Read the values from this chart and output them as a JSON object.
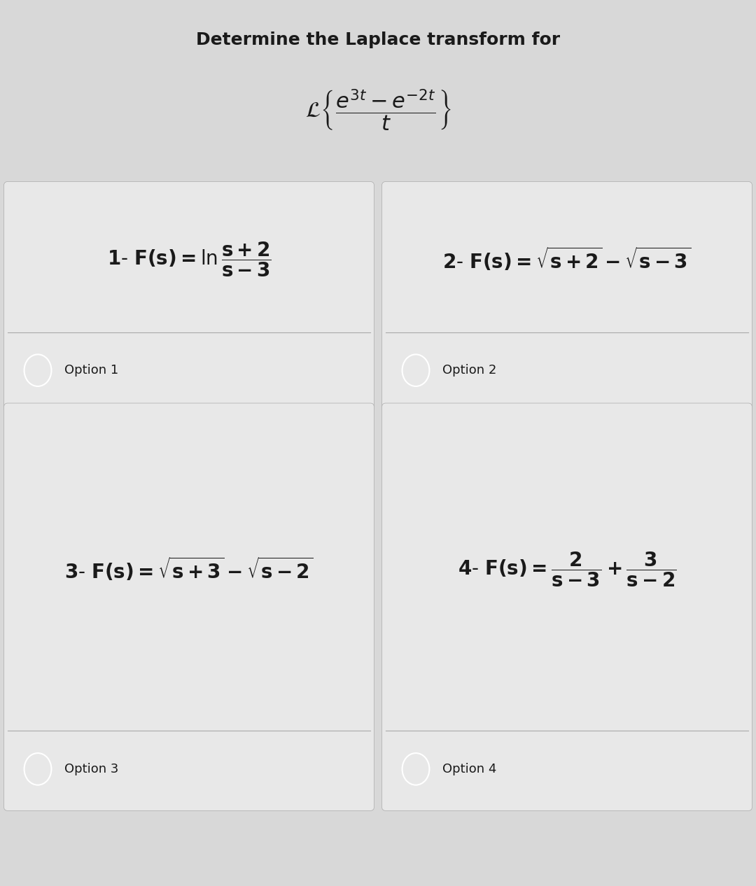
{
  "title": "Determine the Laplace transform for",
  "title_fontsize": 18,
  "question_latex": "$\\mathcal{L}\\left\\{\\dfrac{e^{3t} - e^{-2t}}{t}\\right\\}$",
  "question_fontsize": 22,
  "option1_latex": "$\\mathbf{1\\text{-}\\ F(s) = \\ln\\dfrac{s+2}{s-3}}$",
  "option2_latex": "$\\mathbf{2\\text{-}\\ F(s) = \\sqrt{s+2} - \\sqrt{s-3}}$",
  "option3_latex": "$\\mathbf{3\\text{-}\\ F(s) = \\sqrt{s+3} - \\sqrt{s-2}}$",
  "option4_latex": "$\\mathbf{4\\text{-}\\ F(s) = \\dfrac{2}{s-3} + \\dfrac{3}{s-2}}$",
  "option_label1": "Option 1",
  "option_label2": "Option 2",
  "option_label3": "Option 3",
  "option_label4": "Option 4",
  "bg_color": "#d8d8d8",
  "cell_bg_color": "#e8e8e8",
  "text_color": "#1a1a1a",
  "label_fontsize": 13,
  "option_fontsize": 20,
  "fig_width": 10.8,
  "fig_height": 12.66
}
